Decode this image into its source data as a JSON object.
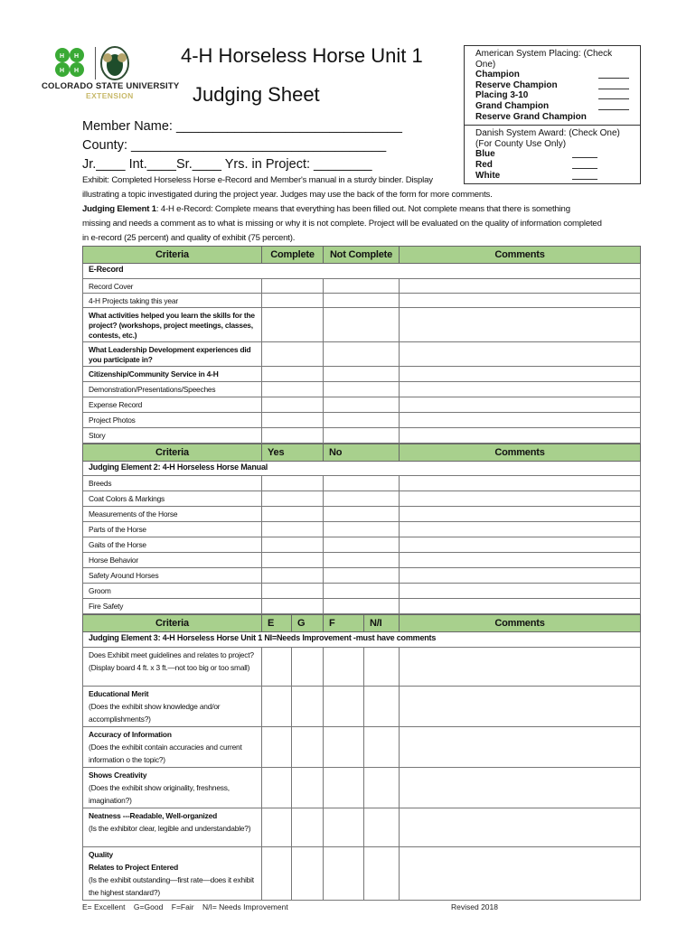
{
  "logo": {
    "text1": "COLORADO STATE UNIVERSITY",
    "text2": "EXTENSION",
    "clover_color": "#3aaa35",
    "gold": "#c8b96a"
  },
  "header": {
    "title": "4-H Horseless Horse Unit 1",
    "subtitle": "Judging Sheet"
  },
  "member": {
    "name_label": "Member Name: _______________________________",
    "county_label": "County: ___________________________________",
    "level_label": "Jr.____ Int.____Sr.____ Yrs. in Project: ________"
  },
  "placing_box": {
    "american_title": "American System Placing: (Check One)",
    "american": [
      "Champion",
      "Reserve Champion",
      "Placing 3-10",
      "Grand Champion",
      "Reserve Grand Champion"
    ],
    "danish_title": "Danish System Award: (Check One)",
    "danish_note": "(For County Use Only)",
    "danish": [
      "Blue",
      "Red",
      "White"
    ]
  },
  "intro": {
    "exhibit": "Exhibit:  Completed Horseless Horse e-Record and Member's manual in a sturdy binder.  Display",
    "exhibit2": "illustrating a topic investigated during the project year.  Judges may use the back of the form for more comments.",
    "je1_label": "Judging Element 1",
    ":": "",
    "je1_text": ":  4-H e-Record:  Complete means that everything has been filled out.  Not complete means that there is something",
    "je1_text2": "missing and needs a comment as to what is missing or why it is not complete.  Project will be evaluated on the quality of information completed",
    "je1_text3": "in e-record (25 percent) and quality of exhibit (75 percent)."
  },
  "table1": {
    "headers": [
      "Criteria",
      "Complete",
      "Not Complete",
      "Comments"
    ],
    "section": "E-Record",
    "rows": [
      "Record Cover",
      "4-H Projects taking this year",
      "What activities helped you learn the skills for the project? (workshops, project meetings, classes, contests, etc.)",
      "What Leadership Development experiences did you participate in?",
      "Citizenship/Community Service in 4-H",
      "Demonstration/Presentations/Speeches",
      "Expense Record",
      "Project Photos",
      "Story"
    ]
  },
  "table2": {
    "headers": [
      "Criteria",
      "Yes",
      "No",
      "Comments"
    ],
    "section": "Judging Element 2: 4-H Horseless Horse Manual",
    "rows": [
      "Breeds",
      "Coat Colors & Markings",
      "Measurements of the Horse",
      "Parts of the Horse",
      "Gaits of the Horse",
      "Horse Behavior",
      "Safety Around Horses",
      "Groom",
      "Fire Safety"
    ]
  },
  "table3": {
    "headers": [
      "Criteria",
      "E",
      "G",
      "F",
      "N/I",
      "Comments"
    ],
    "section": "Judging Element 3: 4-H Horseless Horse Unit 1   NI=Needs Improvement -must have comments",
    "rows": [
      {
        "title": "",
        "desc": "Does Exhibit meet guidelines and relates to project? (Display board 4 ft. x 3 ft.—not too big or too small)"
      },
      {
        "title": "Educational Merit",
        "desc": "(Does the exhibit show knowledge and/or accomplishments?)"
      },
      {
        "title": "Accuracy of Information",
        "desc": "(Does the exhibit contain accuracies and current information o the topic?)"
      },
      {
        "title": "Shows Creativity",
        "desc": "(Does the exhibit show originality, freshness, imagination?)"
      },
      {
        "title": "Neatness ---Readable, Well-organized",
        "desc": "(Is the exhibitor clear, legible and understandable?)"
      },
      {
        "title": "Quality\nRelates to Project Entered",
        "desc": "(Is the exhibit outstanding—first rate—does it exhibit the highest standard?)"
      }
    ]
  },
  "footer": {
    "legend": "E= Excellent    G=Good    F=Fair    N/I= Needs Improvement",
    "revised": "Revised 2018"
  }
}
